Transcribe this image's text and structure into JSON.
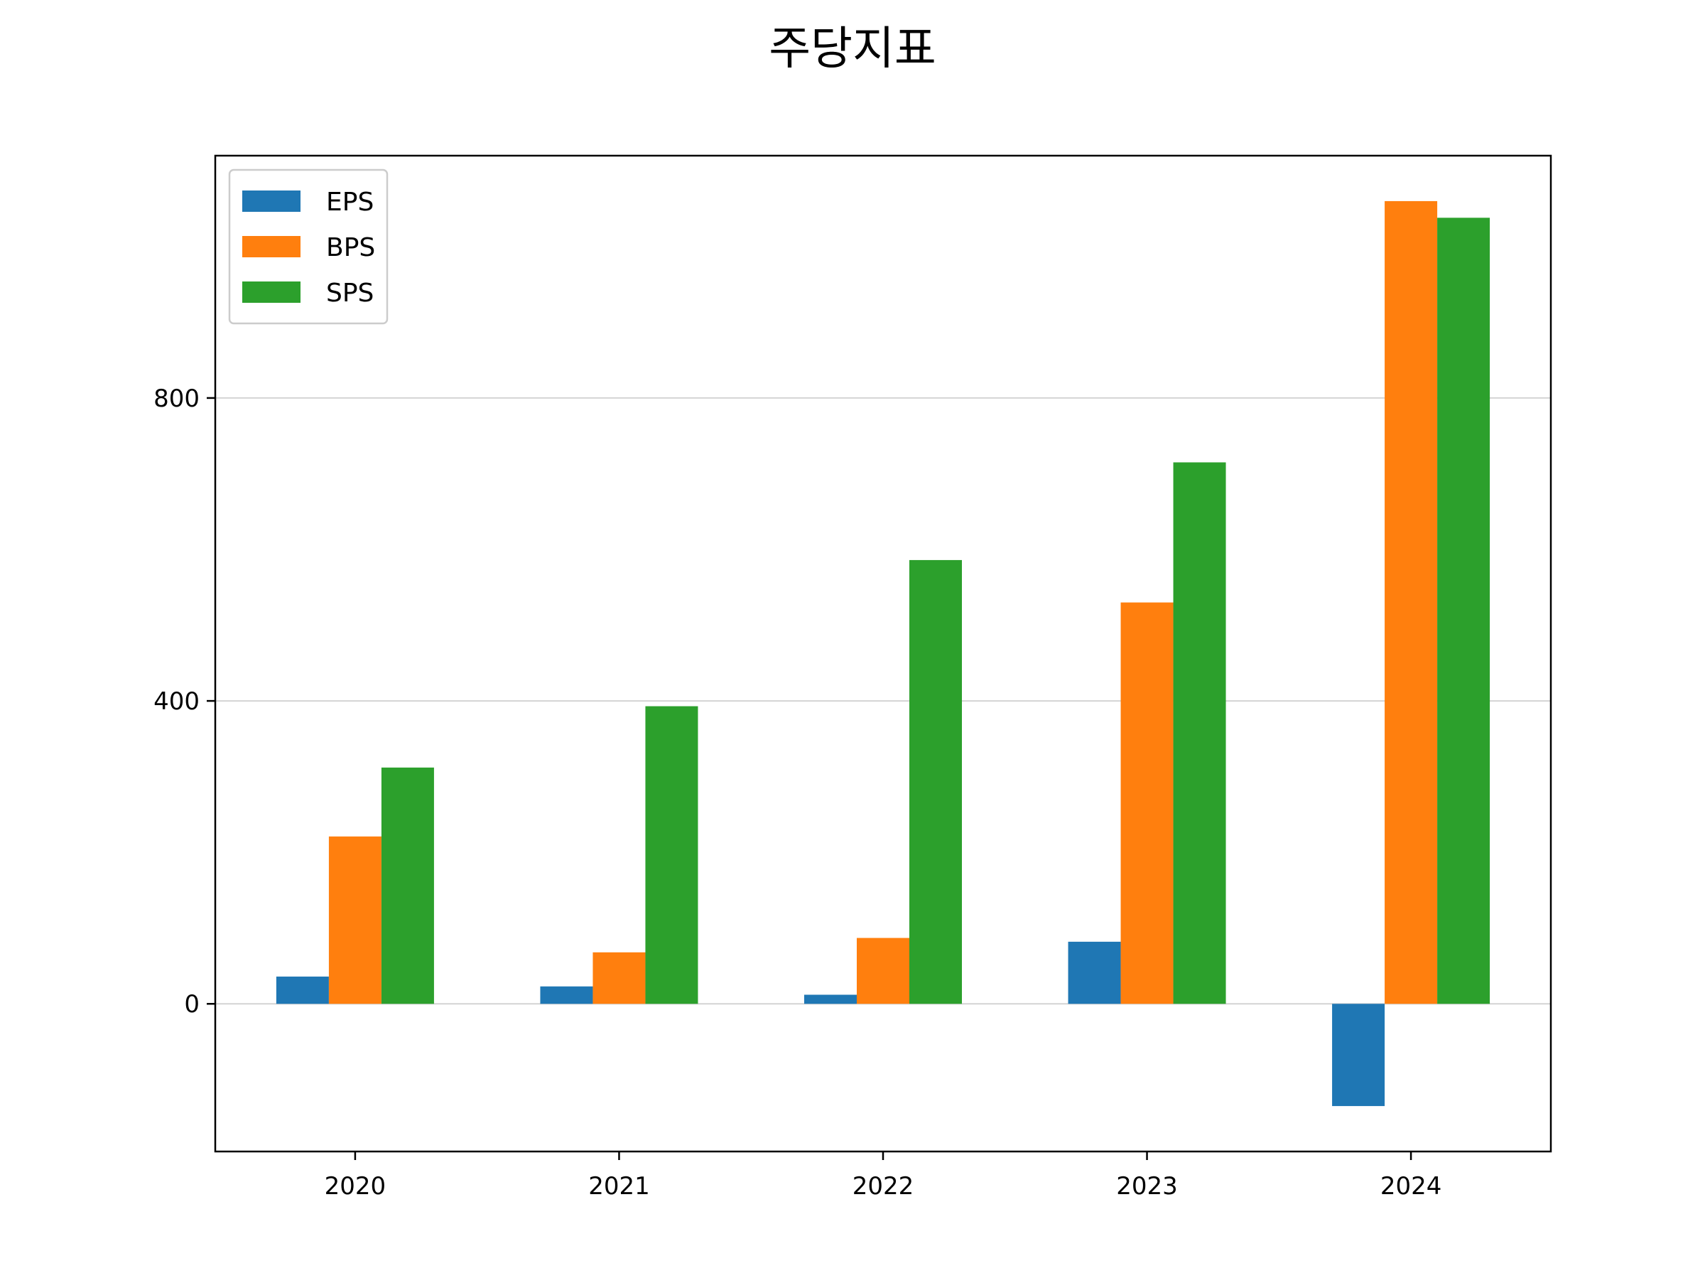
{
  "chart_data": {
    "type": "bar",
    "title": "주당지표",
    "xlabel": "",
    "ylabel": "",
    "categories": [
      "2020",
      "2021",
      "2022",
      "2023",
      "2024"
    ],
    "series": [
      {
        "name": "EPS",
        "color": "#1f77b4",
        "values": [
          36,
          23,
          12,
          82,
          -135
        ]
      },
      {
        "name": "BPS",
        "color": "#ff7f0e",
        "values": [
          221,
          68,
          87,
          530,
          1060
        ]
      },
      {
        "name": "SPS",
        "color": "#2ca02c",
        "values": [
          312,
          393,
          586,
          715,
          1038
        ]
      }
    ],
    "ylim": [
      -195,
      1120
    ],
    "yticks": [
      0,
      400,
      800
    ],
    "ytick_labels": [
      "0",
      "400",
      "800"
    ],
    "grid": "y",
    "legend_position": "top-left"
  }
}
